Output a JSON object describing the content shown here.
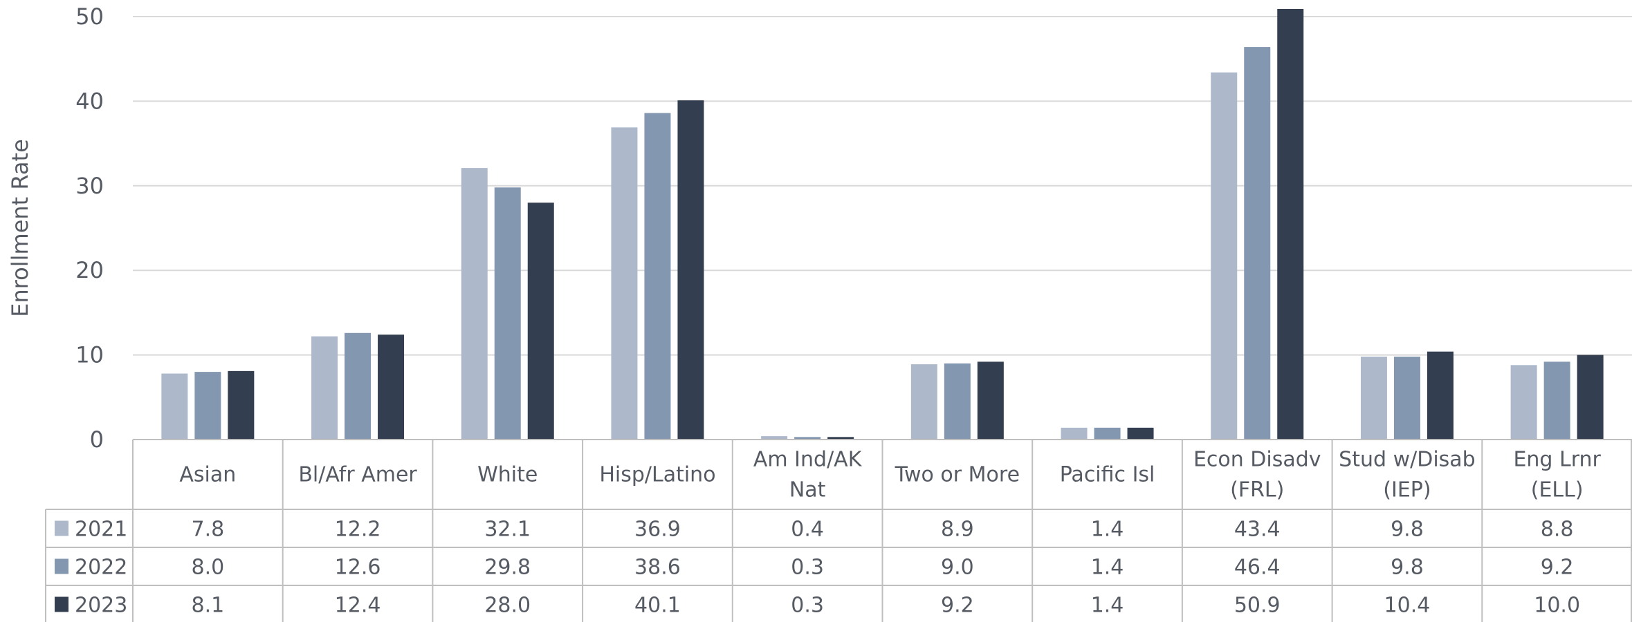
{
  "chart_data": {
    "type": "bar",
    "ylabel": "Enrollment Rate",
    "ylim": [
      0,
      50
    ],
    "yticks": [
      "0",
      "10",
      "20",
      "30",
      "40",
      "50"
    ],
    "grid": true,
    "legend_placement": "data table rows",
    "categories": [
      [
        "Asian"
      ],
      [
        "Bl/Afr Amer"
      ],
      [
        "White"
      ],
      [
        "Hisp/Latino"
      ],
      [
        "Am Ind/AK",
        "Nat"
      ],
      [
        "Two or More"
      ],
      [
        "Pacific Isl"
      ],
      [
        "Econ Disadv",
        "(FRL)"
      ],
      [
        "Stud w/Disab",
        "(IEP)"
      ],
      [
        "Eng Lrnr",
        "(ELL)"
      ]
    ],
    "series": [
      {
        "name": "2021",
        "color": "#adb9cb",
        "values": [
          7.8,
          12.2,
          32.1,
          36.9,
          0.4,
          8.9,
          1.4,
          43.4,
          9.8,
          8.8
        ],
        "labels": [
          "7.8",
          "12.2",
          "32.1",
          "36.9",
          "0.4",
          "8.9",
          "1.4",
          "43.4",
          "9.8",
          "8.8"
        ]
      },
      {
        "name": "2022",
        "color": "#8497b0",
        "values": [
          8.0,
          12.6,
          29.8,
          38.6,
          0.3,
          9.0,
          1.4,
          46.4,
          9.8,
          9.2
        ],
        "labels": [
          "8.0",
          "12.6",
          "29.8",
          "38.6",
          "0.3",
          "9.0",
          "1.4",
          "46.4",
          "9.8",
          "9.2"
        ]
      },
      {
        "name": "2023",
        "color": "#333f50",
        "values": [
          8.1,
          12.4,
          28.0,
          40.1,
          0.3,
          9.2,
          1.4,
          50.9,
          10.4,
          10.0
        ],
        "labels": [
          "8.1",
          "12.4",
          "28.0",
          "40.1",
          "0.3",
          "9.2",
          "1.4",
          "50.9",
          "10.4",
          "10.0"
        ]
      }
    ]
  }
}
